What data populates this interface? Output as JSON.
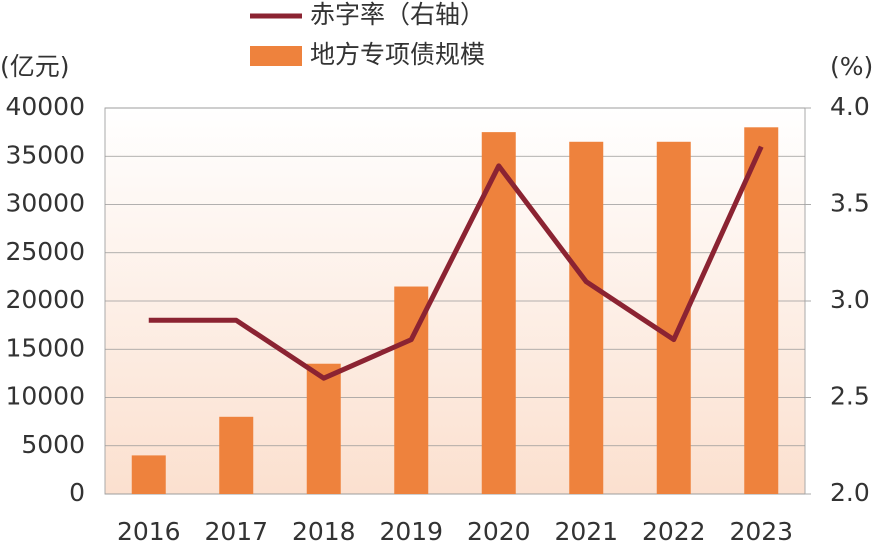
{
  "chart_data": {
    "type": "bar",
    "y_label": "(亿元)",
    "y2_label": "(%)",
    "categories": [
      "2016",
      "2017",
      "2018",
      "2019",
      "2020",
      "2021",
      "2022",
      "2023"
    ],
    "series": [
      {
        "name": "赤字率（右轴）",
        "type": "line",
        "axis": "y2",
        "color": "#8b2332",
        "values": [
          2.9,
          2.9,
          2.6,
          2.8,
          3.7,
          3.1,
          2.8,
          3.8
        ]
      },
      {
        "name": "地方专项债规模",
        "type": "bar",
        "color": "#ee823d",
        "values": [
          4000,
          8000,
          13500,
          21500,
          37500,
          36500,
          36500,
          38000
        ]
      }
    ],
    "ylim": [
      0,
      40000
    ],
    "yticks": [
      0,
      5000,
      10000,
      15000,
      20000,
      25000,
      30000,
      35000,
      40000
    ],
    "y2lim": [
      2.0,
      4.0
    ],
    "y2ticks": [
      {
        "value": 2.0,
        "label": "2.0"
      },
      2.5,
      {
        "value": 3.0,
        "label": "3.0"
      },
      3.5,
      {
        "value": 4.0,
        "label": "4.0"
      }
    ],
    "grid": true
  }
}
